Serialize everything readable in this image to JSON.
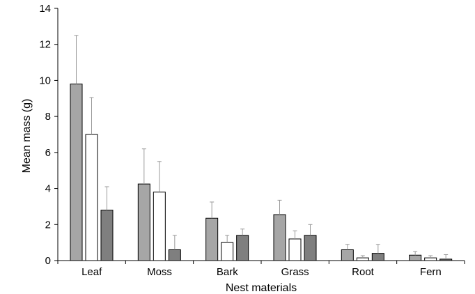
{
  "chart_data": {
    "type": "bar",
    "xlabel": "Nest materials",
    "ylabel": "Mean mass (g)",
    "ylim": [
      0,
      14
    ],
    "yticks": [
      "0",
      "2",
      "4",
      "6",
      "8",
      "10",
      "12",
      "14"
    ],
    "categories": [
      "Leaf",
      "Moss",
      "Bark",
      "Grass",
      "Root",
      "Fern"
    ],
    "legend": "none",
    "grid": false,
    "series": [
      {
        "color": "#a6a6a6",
        "values": [
          9.8,
          4.25,
          2.35,
          2.55,
          0.6,
          0.3
        ],
        "errors": [
          2.7,
          1.95,
          0.9,
          0.8,
          0.3,
          0.2
        ]
      },
      {
        "color": "#ffffff",
        "values": [
          7.0,
          3.8,
          1.0,
          1.2,
          0.15,
          0.15
        ],
        "errors": [
          2.05,
          1.7,
          0.4,
          0.45,
          0.12,
          0.12
        ]
      },
      {
        "color": "#7f7f7f",
        "values": [
          2.8,
          0.6,
          1.4,
          1.4,
          0.4,
          0.08
        ],
        "errors": [
          1.3,
          0.8,
          0.35,
          0.6,
          0.5,
          0.25
        ]
      }
    ]
  }
}
